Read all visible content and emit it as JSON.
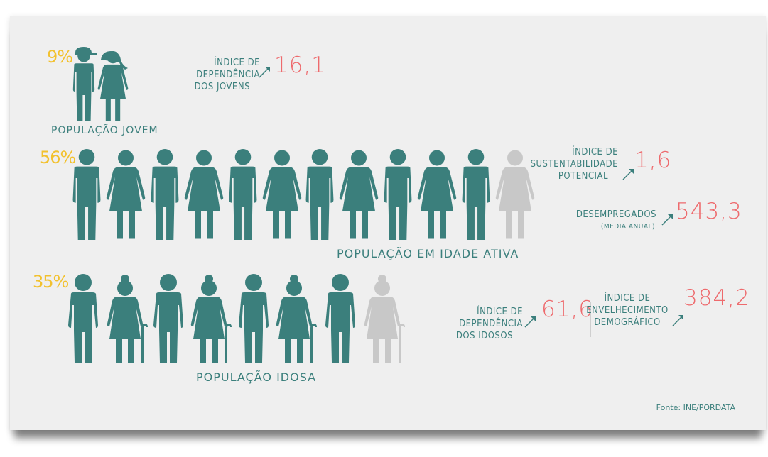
{
  "colors": {
    "teal": "#3b7f7c",
    "teal_dark": "#357472",
    "gray_figure": "#c8c8c8",
    "yellow": "#f2c12e",
    "coral": "#ee6a6d"
  },
  "young": {
    "percent": "9%",
    "label": "POPULAÇÃO JOVEM",
    "indicator": {
      "label_line1": "ÍNDICE DE DEPENDÊNCIA",
      "label_line2": "DOS JOVENS",
      "value": "16,1"
    }
  },
  "working": {
    "percent": "56%",
    "label": "POPULAÇÃO EM IDADE ATIVA",
    "indicators": [
      {
        "label_line1": "ÍNDICE DE",
        "label_line2": "SUSTENTABILIDADE",
        "label_line3": "POTENCIAL",
        "value": "1,6"
      },
      {
        "label_line1": "DESEMPREGADOS",
        "label_line2": "(MEDIA ANUAL)",
        "value": "543,3"
      }
    ]
  },
  "elderly": {
    "percent": "35%",
    "label": "POPULAÇÃO IDOSA",
    "indicators": [
      {
        "label_line1": "ÍNDICE DE DEPENDÊNCIA",
        "label_line2": "DOS IDOSOS",
        "value": "61,6"
      },
      {
        "label_line1": "ÍNDICE DE",
        "label_line2": "ENVELHECIMENTO",
        "label_line3": "DEMOGRÁFICO",
        "value": "384,2"
      }
    ]
  },
  "source": "Fonte: INE/PORDATA",
  "icons": [
    "boy-icon",
    "girl-icon",
    "man-icon",
    "woman-icon",
    "elderly-man-icon",
    "elderly-woman-icon",
    "arrow-up-right-icon"
  ]
}
